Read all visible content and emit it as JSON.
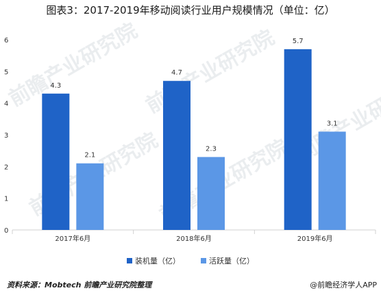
{
  "title": "图表3：2017-2019年移动阅读行业用户规模情况（单位：亿）",
  "watermark_text": "前瞻产业研究院",
  "source_text": "资料来源：Mobtech 前瞻产业研究院整理",
  "brand_text": "@前瞻经济学人APP",
  "chart_data": {
    "type": "bar",
    "categories": [
      "2017年6月",
      "2018年6月",
      "2019年6月"
    ],
    "series": [
      {
        "name": "装机量（亿）",
        "values": [
          4.3,
          4.7,
          5.7
        ],
        "color": "#1f63c7"
      },
      {
        "name": "活跃量（亿）",
        "values": [
          2.1,
          2.3,
          3.1
        ],
        "color": "#5b97e6"
      }
    ],
    "yticks": [
      0,
      1,
      2,
      3,
      4,
      5,
      6
    ],
    "ylim": [
      0,
      6
    ],
    "grid": false,
    "legend_position": "bottom",
    "data_labels": true
  }
}
